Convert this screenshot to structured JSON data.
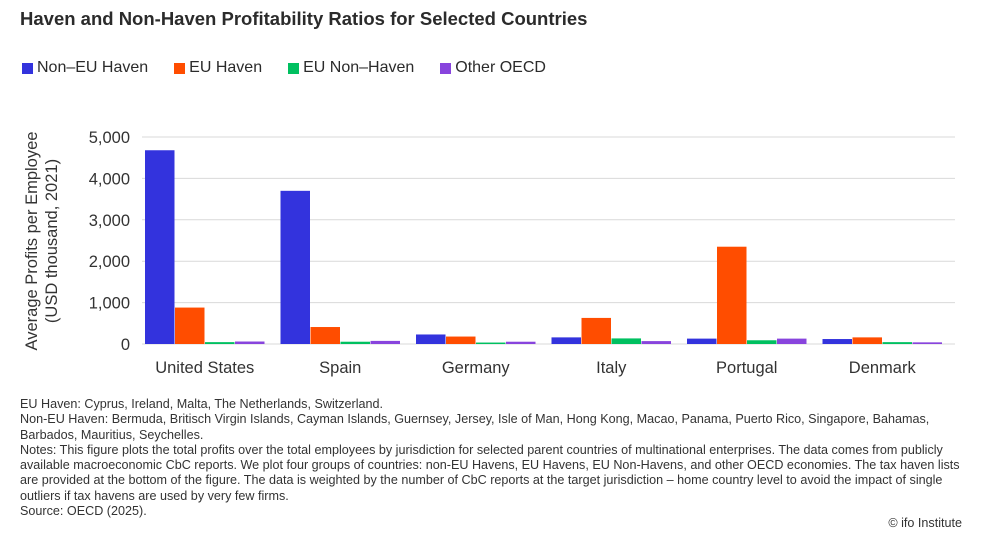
{
  "title": "Haven and Non-Haven Profitability Ratios for Selected Countries",
  "chart_data": {
    "type": "bar",
    "title": "Haven and Non-Haven Profitability Ratios for Selected Countries",
    "categories": [
      "United States",
      "Spain",
      "Germany",
      "Italy",
      "Portugal",
      "Denmark"
    ],
    "series": [
      {
        "name": "Non–EU Haven",
        "color": "#3333dd",
        "values": [
          4680,
          3700,
          230,
          160,
          130,
          120
        ]
      },
      {
        "name": "EU Haven",
        "color": "#ff4d00",
        "values": [
          880,
          410,
          180,
          630,
          2350,
          160
        ]
      },
      {
        "name": "EU Non–Haven",
        "color": "#00c060",
        "values": [
          45,
          55,
          35,
          135,
          90,
          45
        ]
      },
      {
        "name": "Other OECD",
        "color": "#8844dd",
        "values": [
          60,
          75,
          55,
          70,
          130,
          40
        ]
      }
    ],
    "ylabel": "Average Profits per Employee (USD thousand, 2021)",
    "ylabel_lines": [
      "Average Profits per Employee",
      "(USD thousand, 2021)"
    ],
    "xlabel": "",
    "ylim": [
      0,
      5000
    ],
    "yticks": [
      0,
      1000,
      2000,
      3000,
      4000,
      5000
    ],
    "ytick_labels": [
      "0",
      "1,000",
      "2,000",
      "3,000",
      "4,000",
      "5,000"
    ],
    "grid": true,
    "legend_position": "top-left"
  },
  "notes": {
    "eu_haven": "EU Haven: Cyprus, Ireland, Malta, The Netherlands, Switzerland.",
    "non_eu_haven": "Non-EU Haven: Bermuda, Britisch Virgin Islands, Cayman Islands, Guernsey, Jersey, Isle of Man, Hong Kong, Macao, Panama, Puerto Rico, Singapore, Bahamas, Barbados, Mauritius, Seychelles.",
    "notes": "Notes: This figure plots the total profits over the total employees by jurisdiction for selected parent countries of multinational enterprises. The data comes from publicly available macroeconomic CbC reports. We plot four groups of countries: non-EU Havens, EU Havens, EU Non-Havens, and other OECD economies. The tax haven lists are provided at the bottom of the figure. The data is weighted by the number of CbC reports at the target jurisdiction – home country level to avoid the impact of single outliers if tax havens are used by very few firms.",
    "source": "Source: OECD (2025)."
  },
  "credit": "© ifo Institute"
}
